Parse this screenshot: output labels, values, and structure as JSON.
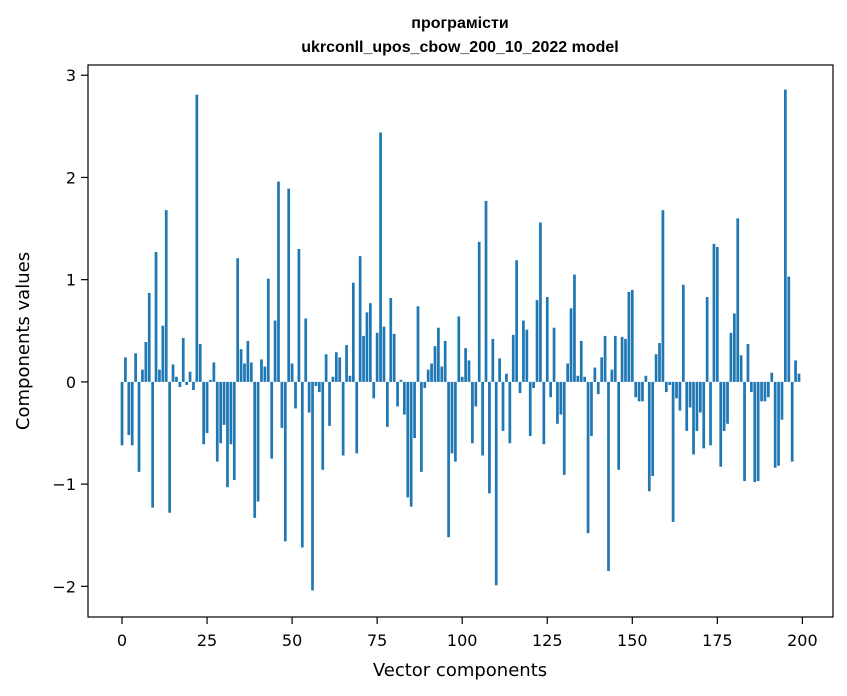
{
  "chart_data": {
    "type": "bar",
    "title_line1": "програмісти",
    "title_line2": "ukrconll_upos_cbow_200_10_2022 model",
    "xlabel": "Vector components",
    "ylabel": "Components values",
    "xlim": [
      -10,
      209
    ],
    "ylim": [
      -2.3,
      3.1
    ],
    "xticks": [
      0,
      25,
      50,
      75,
      100,
      125,
      150,
      175,
      200
    ],
    "xtick_labels": [
      "0",
      "25",
      "50",
      "75",
      "100",
      "125",
      "150",
      "175",
      "200"
    ],
    "yticks": [
      -2,
      -1,
      0,
      1,
      2,
      3
    ],
    "ytick_labels": [
      "−2",
      "−1",
      "0",
      "1",
      "2",
      "3"
    ],
    "bar_color": "#1f77b4",
    "grid": false,
    "x": [
      0,
      1,
      2,
      3,
      4,
      5,
      6,
      7,
      8,
      9,
      10,
      11,
      12,
      13,
      14,
      15,
      16,
      17,
      18,
      19,
      20,
      21,
      22,
      23,
      24,
      25,
      26,
      27,
      28,
      29,
      30,
      31,
      32,
      33,
      34,
      35,
      36,
      37,
      38,
      39,
      40,
      41,
      42,
      43,
      44,
      45,
      46,
      47,
      48,
      49,
      50,
      51,
      52,
      53,
      54,
      55,
      56,
      57,
      58,
      59,
      60,
      61,
      62,
      63,
      64,
      65,
      66,
      67,
      68,
      69,
      70,
      71,
      72,
      73,
      74,
      75,
      76,
      77,
      78,
      79,
      80,
      81,
      82,
      83,
      84,
      85,
      86,
      87,
      88,
      89,
      90,
      91,
      92,
      93,
      94,
      95,
      96,
      97,
      98,
      99,
      100,
      101,
      102,
      103,
      104,
      105,
      106,
      107,
      108,
      109,
      110,
      111,
      112,
      113,
      114,
      115,
      116,
      117,
      118,
      119,
      120,
      121,
      122,
      123,
      124,
      125,
      126,
      127,
      128,
      129,
      130,
      131,
      132,
      133,
      134,
      135,
      136,
      137,
      138,
      139,
      140,
      141,
      142,
      143,
      144,
      145,
      146,
      147,
      148,
      149,
      150,
      151,
      152,
      153,
      154,
      155,
      156,
      157,
      158,
      159,
      160,
      161,
      162,
      163,
      164,
      165,
      166,
      167,
      168,
      169,
      170,
      171,
      172,
      173,
      174,
      175,
      176,
      177,
      178,
      179,
      180,
      181,
      182,
      183,
      184,
      185,
      186,
      187,
      188,
      189,
      190,
      191,
      192,
      193,
      194,
      195,
      196,
      197,
      198,
      199
    ],
    "values": [
      -0.62,
      0.24,
      -0.52,
      -0.62,
      0.28,
      -0.88,
      0.12,
      0.39,
      0.87,
      -1.23,
      1.27,
      0.12,
      0.55,
      1.68,
      -1.28,
      0.17,
      0.05,
      -0.05,
      0.43,
      -0.03,
      0.1,
      -0.08,
      2.81,
      0.37,
      -0.61,
      -0.5,
      0.02,
      0.19,
      -0.78,
      -0.6,
      -0.42,
      -1.03,
      -0.61,
      -0.96,
      1.21,
      0.32,
      0.18,
      0.4,
      0.19,
      -1.33,
      -1.17,
      0.22,
      0.15,
      1.01,
      -0.75,
      0.6,
      1.96,
      -0.45,
      -1.56,
      1.89,
      0.18,
      -0.26,
      1.3,
      -1.62,
      0.62,
      -0.3,
      -2.04,
      -0.04,
      -0.1,
      -0.86,
      0.27,
      -0.43,
      0.05,
      0.29,
      0.24,
      -0.72,
      0.36,
      0.06,
      0.97,
      -0.7,
      1.23,
      0.45,
      0.68,
      0.77,
      -0.16,
      0.48,
      2.44,
      0.54,
      -0.44,
      0.82,
      0.47,
      -0.24,
      0.02,
      -0.32,
      -1.13,
      -1.22,
      -0.55,
      0.74,
      -0.88,
      -0.06,
      0.12,
      0.18,
      0.35,
      0.53,
      0.15,
      0.4,
      -1.52,
      -0.7,
      -0.78,
      0.64,
      0.05,
      0.33,
      0.21,
      -0.6,
      -0.24,
      1.37,
      -0.72,
      1.77,
      -1.09,
      0.42,
      -1.99,
      0.23,
      -0.48,
      0.08,
      -0.6,
      0.46,
      1.19,
      -0.11,
      0.6,
      0.51,
      -0.53,
      -0.06,
      0.8,
      1.56,
      -0.61,
      0.83,
      -0.15,
      0.53,
      -0.41,
      -0.32,
      -0.91,
      0.18,
      0.72,
      1.05,
      0.06,
      0.4,
      0.05,
      -1.48,
      -0.53,
      0.14,
      -0.12,
      0.24,
      0.45,
      -1.85,
      0.12,
      0.45,
      -0.86,
      0.44,
      0.42,
      0.88,
      0.9,
      -0.15,
      -0.19,
      -0.19,
      0.06,
      -1.07,
      -0.92,
      0.27,
      0.38,
      1.68,
      -0.1,
      -0.03,
      -1.37,
      -0.16,
      -0.28,
      0.95,
      -0.48,
      -0.25,
      -0.71,
      -0.48,
      -0.3,
      -0.65,
      0.83,
      -0.62,
      1.35,
      1.32,
      -0.83,
      -0.48,
      -0.41,
      0.48,
      0.67,
      1.6,
      0.26,
      -0.97,
      0.37,
      -0.1,
      -0.98,
      -0.97,
      -0.19,
      -0.19,
      -0.15,
      0.09,
      -0.84,
      -0.82,
      -0.37,
      2.86,
      1.03,
      -0.78,
      0.21,
      0.08
    ]
  }
}
